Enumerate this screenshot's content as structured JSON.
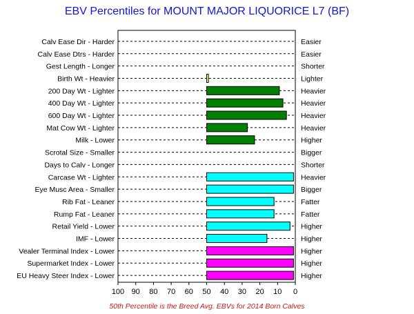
{
  "chart_data": {
    "type": "bar",
    "orientation": "horizontal",
    "title": "EBV Percentiles for MOUNT MAJOR LIQUORICE L7 (BF)",
    "footnote": "50th Percentile is the Breed Avg. EBVs for 2014 Born Calves",
    "xlim": [
      100,
      0
    ],
    "baseline": 50,
    "ticks": [
      "100",
      "90",
      "80",
      "70",
      "60",
      "50",
      "40",
      "30",
      "20",
      "10",
      "0"
    ],
    "grid": "dashed horizontal",
    "traits": [
      {
        "left": "Calv Ease Dir - Harder",
        "right": "Easier",
        "value": null,
        "color": ""
      },
      {
        "left": "Calv Ease Dtrs - Harder",
        "right": "Easier",
        "value": null,
        "color": ""
      },
      {
        "left": "Gest Length - Longer",
        "right": "Shorter",
        "value": null,
        "color": ""
      },
      {
        "left": "Birth Wt - Heavier",
        "right": "Lighter",
        "value": 49,
        "color": "#ffff66"
      },
      {
        "left": "200 Day Wt - Lighter",
        "right": "Heavier",
        "value": 9,
        "color": "#008000"
      },
      {
        "left": "400 Day Wt - Lighter",
        "right": "Heavier",
        "value": 7,
        "color": "#008000"
      },
      {
        "left": "600 Day Wt - Lighter",
        "right": "Heavier",
        "value": 5,
        "color": "#008000"
      },
      {
        "left": "Mat Cow Wt - Lighter",
        "right": "Heavier",
        "value": 27,
        "color": "#008000"
      },
      {
        "left": "Milk - Lower",
        "right": "Higher",
        "value": 23,
        "color": "#008000"
      },
      {
        "left": "Scrotal Size - Smaller",
        "right": "Bigger",
        "value": null,
        "color": ""
      },
      {
        "left": "Days to Calv - Longer",
        "right": "Shorter",
        "value": null,
        "color": ""
      },
      {
        "left": "Carcase Wt - Lighter",
        "right": "Heavier",
        "value": 1,
        "color": "#00ffff"
      },
      {
        "left": "Eye Musc Area - Smaller",
        "right": "Bigger",
        "value": 1,
        "color": "#00ffff"
      },
      {
        "left": "Rib Fat - Leaner",
        "right": "Fatter",
        "value": 12,
        "color": "#00ffff"
      },
      {
        "left": "Rump Fat - Leaner",
        "right": "Fatter",
        "value": 12,
        "color": "#00ffff"
      },
      {
        "left": "Retail Yield - Lower",
        "right": "Higher",
        "value": 3,
        "color": "#00ffff"
      },
      {
        "left": "IMF - Lower",
        "right": "Higher",
        "value": 16,
        "color": "#00ffff"
      },
      {
        "left": "Vealer Terminal Index - Lower",
        "right": "Higher",
        "value": 1,
        "color": "#ff00ff"
      },
      {
        "left": "Supermarket Index - Lower",
        "right": "Higher",
        "value": 1,
        "color": "#ff00ff"
      },
      {
        "left": "EU Heavy Steer Index - Lower",
        "right": "Higher",
        "value": 1,
        "color": "#ff00ff"
      }
    ]
  }
}
